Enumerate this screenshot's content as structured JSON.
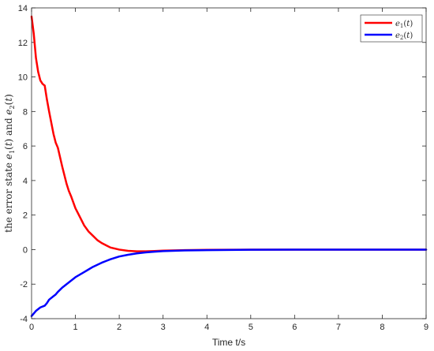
{
  "chart_data": {
    "type": "line",
    "title": "",
    "xlabel": "Time t/s",
    "ylabel": "the error state e1(t) and e2(t)",
    "xlim": [
      0,
      9
    ],
    "ylim": [
      -4,
      14
    ],
    "xticks": [
      "0",
      "1",
      "2",
      "3",
      "4",
      "5",
      "6",
      "7",
      "8",
      "9"
    ],
    "yticks": [
      "-4",
      "-2",
      "0",
      "2",
      "4",
      "6",
      "8",
      "10",
      "12",
      "14"
    ],
    "grid": false,
    "legend_position": "top-right",
    "series": [
      {
        "name": "e1(t)",
        "color": "#ff0000",
        "x": [
          0,
          0.05,
          0.1,
          0.15,
          0.2,
          0.25,
          0.3,
          0.35,
          0.4,
          0.5,
          0.55,
          0.6,
          0.7,
          0.8,
          0.85,
          0.9,
          1.0,
          1.1,
          1.2,
          1.3,
          1.4,
          1.5,
          1.6,
          1.7,
          1.8,
          2.0,
          2.2,
          2.4,
          2.6,
          2.8,
          3.0,
          3.5,
          4.0,
          5.0,
          6.0,
          7.0,
          8.0,
          9.0
        ],
        "y": [
          13.5,
          12.5,
          11.1,
          10.3,
          9.8,
          9.6,
          9.5,
          8.7,
          8.0,
          6.7,
          6.2,
          5.9,
          4.8,
          3.8,
          3.4,
          3.1,
          2.4,
          1.9,
          1.4,
          1.05,
          0.8,
          0.55,
          0.38,
          0.25,
          0.12,
          0.0,
          -0.07,
          -0.1,
          -0.1,
          -0.08,
          -0.06,
          -0.03,
          -0.015,
          0.0,
          0.0,
          0.0,
          0.0,
          0.0
        ]
      },
      {
        "name": "e2(t)",
        "color": "#0000ff",
        "x": [
          0,
          0.05,
          0.1,
          0.2,
          0.3,
          0.35,
          0.4,
          0.5,
          0.55,
          0.6,
          0.7,
          0.8,
          0.9,
          1.0,
          1.1,
          1.2,
          1.3,
          1.4,
          1.5,
          1.6,
          1.7,
          1.8,
          1.9,
          2.0,
          2.2,
          2.4,
          2.6,
          2.8,
          3.0,
          3.5,
          4.0,
          5.0,
          6.0,
          7.0,
          8.0,
          9.0
        ],
        "y": [
          -3.85,
          -3.7,
          -3.55,
          -3.35,
          -3.25,
          -3.1,
          -2.9,
          -2.7,
          -2.6,
          -2.45,
          -2.2,
          -2.0,
          -1.8,
          -1.6,
          -1.45,
          -1.3,
          -1.15,
          -1.0,
          -0.88,
          -0.76,
          -0.66,
          -0.56,
          -0.48,
          -0.4,
          -0.3,
          -0.22,
          -0.16,
          -0.12,
          -0.09,
          -0.05,
          -0.03,
          -0.01,
          0.0,
          0.0,
          0.0,
          0.0
        ]
      }
    ]
  }
}
